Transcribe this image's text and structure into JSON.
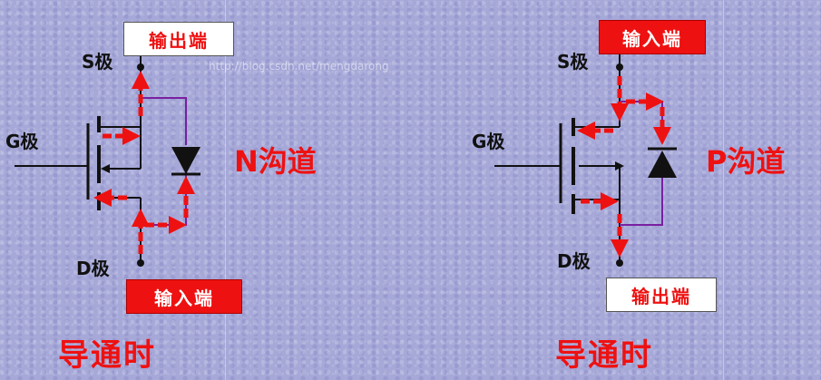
{
  "watermark": "http://blog.csdn.net/mengdarong",
  "colors": {
    "accent": "#ee1111",
    "wire": "#111111",
    "bypass": "#7a1fa0",
    "background": "#a6a8d8"
  },
  "left": {
    "top_box": "输出端",
    "bottom_box": "输入端",
    "s_label": "S极",
    "g_label": "G极",
    "d_label": "D极",
    "channel": "N沟道",
    "caption": "导通时"
  },
  "right": {
    "top_box": "输入端",
    "bottom_box": "输出端",
    "s_label": "S极",
    "g_label": "G极",
    "d_label": "D极",
    "channel": "P沟道",
    "caption": "导通时"
  }
}
